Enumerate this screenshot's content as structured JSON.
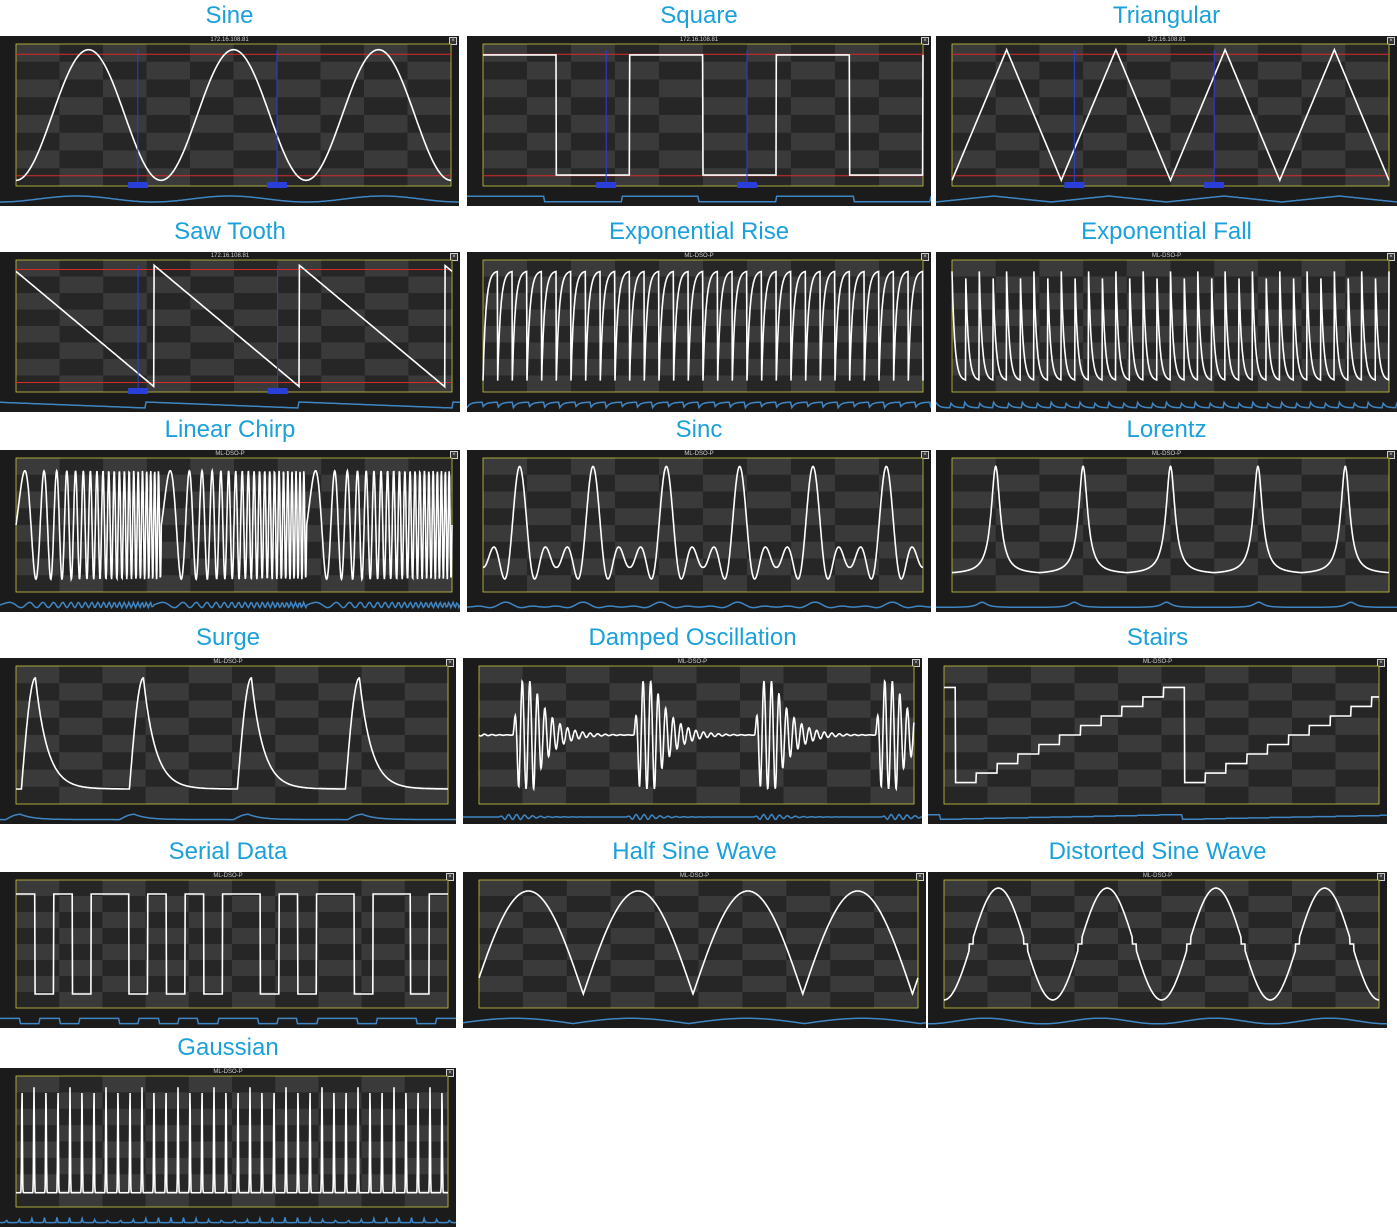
{
  "colors": {
    "title": "#1aa0db",
    "screen": "#1b1b1b",
    "trace": "#ffffff",
    "cursor_line": "#2a3fd9",
    "marker_line": "#d92a2a",
    "frame_line": "#c8c83c",
    "overview": "#3f86c4"
  },
  "panels": [
    {
      "id": "sine",
      "title": "Sine",
      "header": "172.16.108.81",
      "shape": "sine",
      "cycles": 3,
      "cursors": true,
      "markers": true
    },
    {
      "id": "square",
      "title": "Square",
      "header": "172.16.108.81",
      "shape": "square",
      "cycles": 3,
      "cursors": true,
      "markers": true
    },
    {
      "id": "triangular",
      "title": "Triangular",
      "header": "172.16.108.81",
      "shape": "triangle",
      "cycles": 4,
      "cursors": true,
      "markers": true
    },
    {
      "id": "saw-tooth",
      "title": "Saw Tooth",
      "header": "172.16.108.81",
      "shape": "saw",
      "cycles": 3,
      "cursors": true,
      "markers": true
    },
    {
      "id": "exponential-rise",
      "title": "Exponential Rise",
      "header": "ML-DSO-P",
      "shape": "exprise",
      "cycles": 30,
      "cursors": false,
      "markers": false
    },
    {
      "id": "exponential-fall",
      "title": "Exponential Fall",
      "header": "ML-DSO-P",
      "shape": "expfall",
      "cycles": 32,
      "cursors": false,
      "markers": false
    },
    {
      "id": "linear-chirp",
      "title": "Linear Chirp",
      "header": "ML-DSO-P",
      "shape": "chirp",
      "cycles": 3,
      "cursors": false,
      "markers": false
    },
    {
      "id": "sinc",
      "title": "Sinc",
      "header": "ML-DSO-P",
      "shape": "sinc",
      "cycles": 6,
      "cursors": false,
      "markers": false
    },
    {
      "id": "lorentz",
      "title": "Lorentz",
      "header": "ML-DSO-P",
      "shape": "lorentz",
      "cycles": 5,
      "cursors": false,
      "markers": false
    },
    {
      "id": "surge",
      "title": "Surge",
      "header": "ML-DSO-P",
      "shape": "surge",
      "cycles": 4,
      "cursors": false,
      "markers": false
    },
    {
      "id": "damped-oscillation",
      "title": "Damped Oscillation",
      "header": "ML-DSO-P",
      "shape": "damped",
      "cycles": 3.6,
      "cursors": false,
      "markers": false
    },
    {
      "id": "stairs",
      "title": "Stairs",
      "header": "ML-DSO-P",
      "shape": "stairs",
      "cycles": 1.9,
      "cursors": false,
      "markers": false
    },
    {
      "id": "serial-data",
      "title": "Serial Data",
      "header": "ML-DSO-P",
      "shape": "serial",
      "cycles": 1,
      "cursors": false,
      "markers": false
    },
    {
      "id": "half-sine-wave",
      "title": "Half Sine Wave",
      "header": "ML-DSO-P",
      "shape": "halfsine",
      "cycles": 4,
      "cursors": false,
      "markers": false
    },
    {
      "id": "distorted-sine-wave",
      "title": "Distorted Sine Wave",
      "header": "ML-DSO-P",
      "shape": "distorted",
      "cycles": 4,
      "cursors": false,
      "markers": false
    },
    {
      "id": "gaussian",
      "title": "Gaussian",
      "header": "ML-DSO-P",
      "shape": "gaussian",
      "cycles": 36,
      "cursors": false,
      "markers": false
    }
  ]
}
